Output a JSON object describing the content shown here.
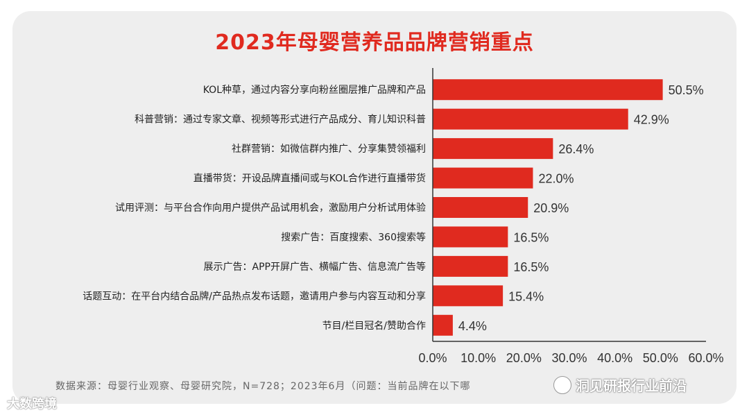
{
  "chart_data": {
    "type": "bar",
    "orientation": "horizontal",
    "title": "2023年母婴营养品品牌营销重点",
    "categories": [
      "KOL种草，通过内容分享向粉丝圈层推广品牌和产品",
      "科普营销：通过专家文章、视频等形式进行产品成分、育儿知识科普",
      "社群营销：如微信群内推广、分享集赞领福利",
      "直播带货：开设品牌直播间或与KOL合作进行直播带货",
      "试用评测：与平台合作向用户提供产品试用机会，激励用户分析试用体验",
      "搜索广告：百度搜索、360搜索等",
      "展示广告：APP开屏广告、横幅广告、信息流广告等",
      "话题互动：在平台内结合品牌/产品热点发布话题，邀请用户参与内容互动和分享",
      "节目/栏目冠名/赞助合作"
    ],
    "values": [
      50.5,
      42.9,
      26.4,
      22.0,
      20.9,
      16.5,
      16.5,
      15.4,
      4.4
    ],
    "value_labels": [
      "50.5%",
      "42.9%",
      "26.4%",
      "22.0%",
      "20.9%",
      "16.5%",
      "16.5%",
      "15.4%",
      "4.4%"
    ],
    "xlim": [
      0,
      60
    ],
    "x_ticks": [
      "0.0%",
      "10.0%",
      "20.0%",
      "30.0%",
      "40.0%",
      "50.0%",
      "60.0%"
    ],
    "bar_color": "#e02a1f",
    "grid": false,
    "source": "数据来源：母婴行业观察、母婴研究院，N=728；2023年6月（问题：当前品牌在以下哪",
    "watermarks": [
      "大数跨境",
      "洞见研报行业前沿"
    ]
  }
}
